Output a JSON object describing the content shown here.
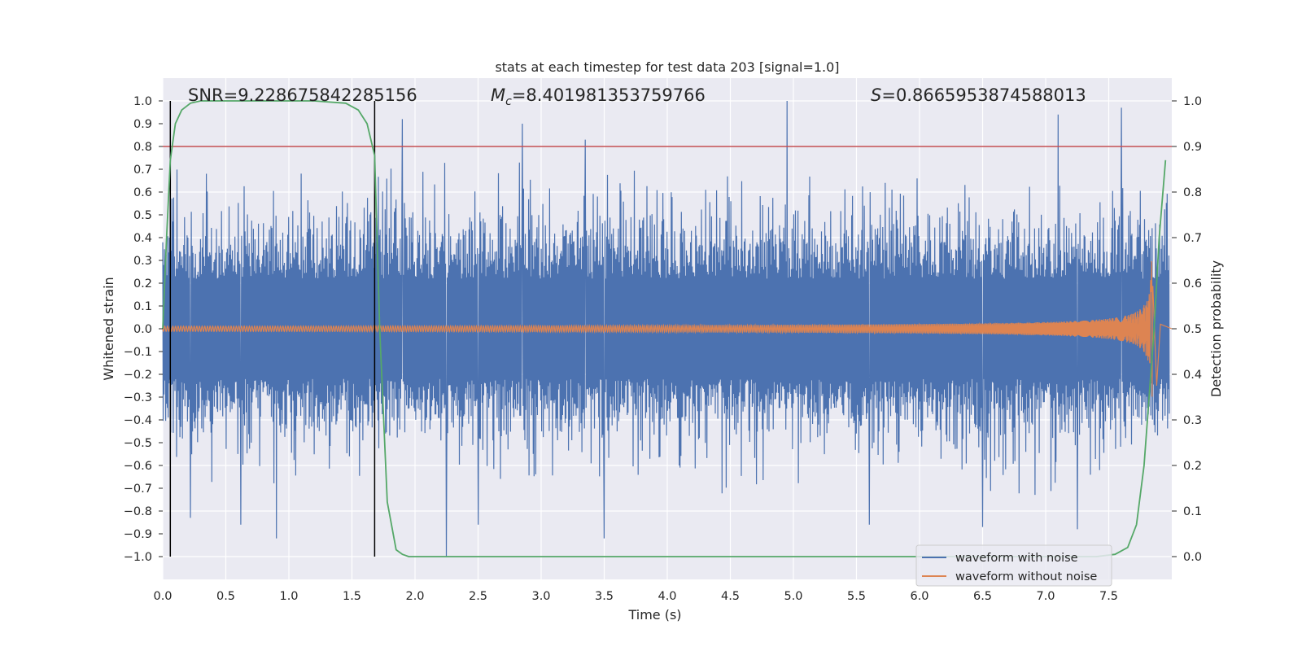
{
  "chart_data": {
    "type": "line",
    "title": "stats at each timestep for test data 203 [signal=1.0]",
    "xlabel": "Time (s)",
    "ylabel": "Whitened strain",
    "y2label": "Detection probability",
    "xlim": [
      0.0,
      8.0
    ],
    "ylim": [
      -1.1,
      1.1
    ],
    "y2lim": [
      -0.05,
      1.05
    ],
    "xticks": [
      "0.0",
      "0.5",
      "1.0",
      "1.5",
      "2.0",
      "2.5",
      "3.0",
      "3.5",
      "4.0",
      "4.5",
      "5.0",
      "5.5",
      "6.0",
      "6.5",
      "7.0",
      "7.5"
    ],
    "xtick_values": [
      0.0,
      0.5,
      1.0,
      1.5,
      2.0,
      2.5,
      3.0,
      3.5,
      4.0,
      4.5,
      5.0,
      5.5,
      6.0,
      6.5,
      7.0,
      7.5
    ],
    "yticks": [
      "1.0",
      "0.9",
      "0.8",
      "0.7",
      "0.6",
      "0.5",
      "0.4",
      "0.3",
      "0.2",
      "0.1",
      "0.0",
      "−0.1",
      "−0.2",
      "−0.3",
      "−0.4",
      "−0.5",
      "−0.6",
      "−0.7",
      "−0.8",
      "−0.9",
      "−1.0"
    ],
    "ytick_values": [
      1.0,
      0.9,
      0.8,
      0.7,
      0.6,
      0.5,
      0.4,
      0.3,
      0.2,
      0.1,
      0.0,
      -0.1,
      -0.2,
      -0.3,
      -0.4,
      -0.5,
      -0.6,
      -0.7,
      -0.8,
      -0.9,
      -1.0
    ],
    "y2ticks": [
      "1.0",
      "0.9",
      "0.8",
      "0.7",
      "0.6",
      "0.5",
      "0.4",
      "0.3",
      "0.2",
      "0.1",
      "0.0"
    ],
    "y2tick_values": [
      1.0,
      0.9,
      0.8,
      0.7,
      0.6,
      0.5,
      0.4,
      0.3,
      0.2,
      0.1,
      0.0
    ],
    "annotations": {
      "snr": "SNR=9.228675842285156",
      "mc_symbol": "M",
      "mc_sub": "c",
      "mc_value": "=8.401981353759766",
      "s_symbol": "S",
      "s_value": "=0.8665953874588013"
    },
    "threshold": {
      "value": 0.9,
      "axis": "y2",
      "color": "#c44e52"
    },
    "vlines": [
      0.06,
      1.68
    ],
    "series": [
      {
        "name": "waveform with noise",
        "color": "#4c72b0",
        "description": "whitened noisy strain, approx ±0.45 typical, peaks near ±1.0",
        "spikes": [
          {
            "x": 1.9,
            "y": 0.92
          },
          {
            "x": 2.85,
            "y": 0.9
          },
          {
            "x": 3.35,
            "y": 0.83
          },
          {
            "x": 4.95,
            "y": 1.0
          },
          {
            "x": 7.1,
            "y": 0.94
          },
          {
            "x": 7.25,
            "y": 0.97
          },
          {
            "x": 7.6,
            "y": 0.97
          },
          {
            "x": 0.22,
            "y": -0.83
          },
          {
            "x": 0.62,
            "y": -0.86
          },
          {
            "x": 0.9,
            "y": -0.92
          },
          {
            "x": 2.25,
            "y": -1.0
          },
          {
            "x": 2.5,
            "y": -0.86
          },
          {
            "x": 3.5,
            "y": -0.92
          },
          {
            "x": 5.6,
            "y": -0.86
          },
          {
            "x": 6.5,
            "y": -0.87
          },
          {
            "x": 7.25,
            "y": -0.88
          }
        ]
      },
      {
        "name": "waveform without noise",
        "color": "#dd8452",
        "description": "chirp signal, amplitude growing from ~0.01 to ~0.3 near merger at ~7.85 s",
        "merger_time": 7.85,
        "peak_amplitude": 0.32
      },
      {
        "name": "detection probability",
        "color": "#55a868",
        "axis": "y2",
        "x": [
          0.0,
          0.03,
          0.06,
          0.1,
          0.15,
          0.22,
          0.3,
          0.45,
          0.8,
          1.2,
          1.45,
          1.55,
          1.62,
          1.68,
          1.72,
          1.78,
          1.85,
          1.9,
          1.95,
          2.0,
          7.4,
          7.55,
          7.65,
          7.72,
          7.78,
          7.82,
          7.86,
          7.9,
          7.95
        ],
        "y": [
          0.5,
          0.7,
          0.87,
          0.95,
          0.98,
          0.995,
          1.0,
          1.0,
          1.0,
          1.0,
          0.995,
          0.98,
          0.95,
          0.88,
          0.5,
          0.12,
          0.015,
          0.005,
          0.0,
          0.0,
          0.0,
          0.005,
          0.02,
          0.07,
          0.2,
          0.35,
          0.5,
          0.7,
          0.87
        ]
      }
    ],
    "legend": {
      "position": "lower-right",
      "entries": [
        {
          "label": "waveform with noise",
          "color": "#4c72b0"
        },
        {
          "label": "waveform without noise",
          "color": "#dd8452"
        }
      ]
    }
  }
}
